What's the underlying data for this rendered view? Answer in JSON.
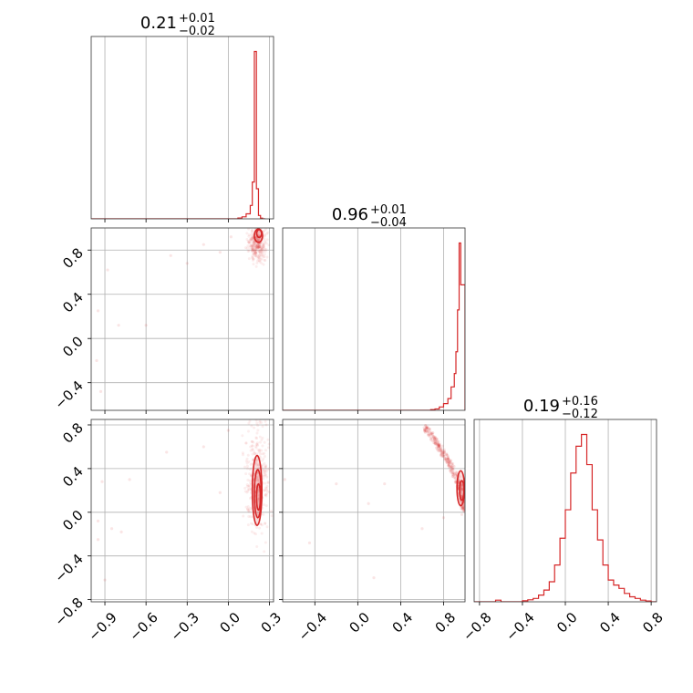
{
  "colors": {
    "line": "#d62728",
    "grid": "#b0b0b0",
    "frame": "#000000"
  },
  "chart_data": {
    "type": "corner",
    "panels": [
      {
        "id": "hist-p1",
        "kind": "histogram",
        "title": {
          "value": "0.21",
          "plus": "+0.01",
          "minus": "−0.02"
        },
        "xlim": [
          -1.0,
          0.33
        ],
        "ylim": [
          0,
          1.09
        ],
        "grid_x": [
          -0.9,
          -0.6,
          -0.3,
          0.0,
          0.3
        ],
        "hist": {
          "edges": [
            -1.0,
            0.07,
            0.1,
            0.13,
            0.16,
            0.175,
            0.19,
            0.205,
            0.22,
            0.235,
            0.25,
            0.27
          ],
          "heights": [
            0.0,
            0.005,
            0.012,
            0.03,
            0.08,
            0.22,
            1.0,
            0.18,
            0.02,
            0.004,
            0.0
          ]
        }
      },
      {
        "id": "scatter-p2-p1",
        "kind": "scatter",
        "xlim": [
          -1.0,
          0.33
        ],
        "ylim": [
          -0.65,
          1.0
        ],
        "grid_x": [
          -0.9,
          -0.6,
          -0.3,
          0.0,
          0.3
        ],
        "grid_y": [
          -0.4,
          0.0,
          0.4,
          0.8
        ],
        "yticks": [
          -0.4,
          0.0,
          0.4,
          0.8
        ],
        "ytick_labels": [
          "−0.4",
          "0.0",
          "0.4",
          "0.8"
        ],
        "points": [
          [
            -0.95,
            0.25
          ],
          [
            -0.93,
            -0.48
          ],
          [
            -0.88,
            0.62
          ],
          [
            -0.8,
            0.12
          ],
          [
            -0.6,
            0.12
          ],
          [
            -0.42,
            0.75
          ],
          [
            -0.3,
            0.68
          ],
          [
            -0.18,
            0.85
          ],
          [
            -0.06,
            0.78
          ],
          [
            0.02,
            0.92
          ],
          [
            -0.96,
            -0.2
          ]
        ],
        "cluster": {
          "x": [
            0.15,
            0.27
          ],
          "y": [
            0.72,
            0.99
          ]
        },
        "contours": [
          {
            "cx": 0.22,
            "cy": 0.93,
            "rx": 0.03,
            "ry": 0.06
          },
          {
            "cx": 0.225,
            "cy": 0.95,
            "rx": 0.018,
            "ry": 0.035
          }
        ]
      },
      {
        "id": "hist-p2",
        "kind": "histogram",
        "title": {
          "value": "0.96",
          "plus": "+0.01",
          "minus": "−0.04"
        },
        "xlim": [
          -0.7,
          1.0
        ],
        "ylim": [
          0,
          1.09
        ],
        "grid_x": [
          -0.4,
          0.0,
          0.4,
          0.8
        ],
        "hist": {
          "edges": [
            -0.7,
            0.68,
            0.72,
            0.76,
            0.8,
            0.84,
            0.87,
            0.9,
            0.915,
            0.93,
            0.945,
            0.96,
            0.975,
            1.0
          ],
          "heights": [
            0.0,
            0.004,
            0.008,
            0.02,
            0.04,
            0.07,
            0.14,
            0.22,
            0.35,
            0.6,
            1.0,
            0.75,
            0.75
          ]
        }
      },
      {
        "id": "scatter-p3-p1",
        "kind": "scatter",
        "xlim": [
          -1.0,
          0.33
        ],
        "ylim": [
          -0.82,
          0.85
        ],
        "grid_x": [
          -0.9,
          -0.6,
          -0.3,
          0.0,
          0.3
        ],
        "grid_y": [
          -0.8,
          -0.4,
          0.0,
          0.4,
          0.8
        ],
        "xticks": [
          -0.9,
          -0.6,
          -0.3,
          0.0,
          0.3
        ],
        "xtick_labels": [
          "−0.9",
          "−0.6",
          "−0.3",
          "0.0",
          "0.3"
        ],
        "yticks": [
          -0.8,
          -0.4,
          0.0,
          0.4,
          0.8
        ],
        "ytick_labels": [
          "−0.8",
          "−0.4",
          "0.0",
          "0.4",
          "0.8"
        ],
        "points": [
          [
            -0.95,
            -0.08
          ],
          [
            -0.92,
            0.28
          ],
          [
            -0.9,
            -0.62
          ],
          [
            -0.85,
            -0.15
          ],
          [
            -0.78,
            -0.18
          ],
          [
            -0.72,
            0.3
          ],
          [
            -0.45,
            0.55
          ],
          [
            -0.18,
            0.6
          ],
          [
            -0.06,
            0.18
          ],
          [
            0.0,
            0.75
          ],
          [
            -0.95,
            -0.25
          ]
        ],
        "cluster": {
          "x": [
            0.13,
            0.29
          ],
          "y": [
            -0.2,
            0.75
          ]
        },
        "contours": [
          {
            "cx": 0.21,
            "cy": 0.2,
            "rx": 0.035,
            "ry": 0.32
          },
          {
            "cx": 0.215,
            "cy": 0.17,
            "rx": 0.025,
            "ry": 0.22
          },
          {
            "cx": 0.22,
            "cy": 0.14,
            "rx": 0.014,
            "ry": 0.12
          }
        ]
      },
      {
        "id": "scatter-p3-p2",
        "kind": "scatter",
        "xlim": [
          -0.7,
          1.0
        ],
        "ylim": [
          -0.82,
          0.85
        ],
        "grid_x": [
          -0.4,
          0.0,
          0.4,
          0.8
        ],
        "grid_y": [
          -0.8,
          -0.4,
          0.0,
          0.4,
          0.8
        ],
        "xticks": [
          -0.4,
          0.0,
          0.4,
          0.8
        ],
        "xtick_labels": [
          "−0.4",
          "0.0",
          "0.4",
          "0.8"
        ],
        "points": [
          [
            -0.68,
            0.3
          ],
          [
            -0.45,
            -0.28
          ],
          [
            -0.2,
            0.26
          ],
          [
            0.1,
            0.08
          ],
          [
            0.15,
            -0.6
          ],
          [
            0.25,
            0.26
          ],
          [
            0.6,
            -0.15
          ],
          [
            0.75,
            0.58
          ],
          [
            0.8,
            -0.05
          ]
        ],
        "arc": {
          "x0": 0.63,
          "y0": 0.78,
          "x1": 0.99,
          "y1": 0.0,
          "spread": 0.05
        },
        "contours": [
          {
            "cx": 0.96,
            "cy": 0.22,
            "rx": 0.035,
            "ry": 0.16
          },
          {
            "cx": 0.97,
            "cy": 0.2,
            "rx": 0.02,
            "ry": 0.09
          }
        ]
      },
      {
        "id": "hist-p3",
        "kind": "histogram",
        "title": {
          "value": "0.19",
          "plus": "+0.16",
          "minus": "−0.12"
        },
        "xlim": [
          -0.85,
          0.85
        ],
        "ylim": [
          0,
          1.09
        ],
        "grid_x": [
          -0.8,
          -0.4,
          0.0,
          0.4,
          0.8
        ],
        "xticks": [
          -0.8,
          -0.4,
          0.0,
          0.4,
          0.8
        ],
        "xtick_labels": [
          "−0.8",
          "−0.4",
          "0.0",
          "0.4",
          "0.8"
        ],
        "hist": {
          "edges": [
            -0.85,
            -0.65,
            -0.6,
            -0.55,
            -0.4,
            -0.35,
            -0.3,
            -0.25,
            -0.2,
            -0.15,
            -0.1,
            -0.05,
            0.0,
            0.05,
            0.1,
            0.15,
            0.2,
            0.25,
            0.3,
            0.35,
            0.4,
            0.45,
            0.5,
            0.55,
            0.6,
            0.65,
            0.7,
            0.75,
            0.8,
            0.85
          ],
          "heights": [
            0.0,
            0.01,
            0.0,
            0.0,
            0.006,
            0.012,
            0.02,
            0.04,
            0.07,
            0.12,
            0.22,
            0.38,
            0.55,
            0.77,
            0.93,
            1.0,
            0.82,
            0.55,
            0.37,
            0.22,
            0.13,
            0.1,
            0.08,
            0.05,
            0.03,
            0.02,
            0.01,
            0.005,
            0.0
          ]
        }
      }
    ]
  }
}
